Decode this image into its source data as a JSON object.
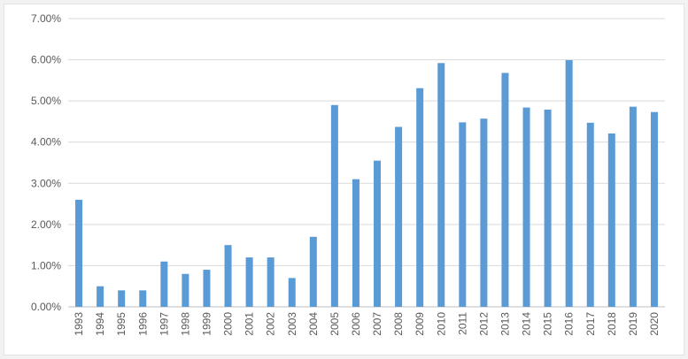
{
  "chart_data": {
    "type": "bar",
    "title": "",
    "xlabel": "",
    "ylabel": "",
    "ylim": [
      0,
      7
    ],
    "y_unit": "%",
    "yticks": [
      "0.00%",
      "1.00%",
      "2.00%",
      "3.00%",
      "4.00%",
      "5.00%",
      "6.00%",
      "7.00%"
    ],
    "grid": "horizontal",
    "legend": "none",
    "bar_color": "#5b9bd5",
    "categories": [
      "1993",
      "1994",
      "1995",
      "1996",
      "1997",
      "1998",
      "1999",
      "2000",
      "2001",
      "2002",
      "2003",
      "2004",
      "2005",
      "2006",
      "2007",
      "2008",
      "2009",
      "2010",
      "2011",
      "2012",
      "2013",
      "2014",
      "2015",
      "2016",
      "2017",
      "2018",
      "2019",
      "2020"
    ],
    "values": [
      2.6,
      0.5,
      0.4,
      0.4,
      1.1,
      0.8,
      0.9,
      1.5,
      1.2,
      1.2,
      0.7,
      1.7,
      4.9,
      3.1,
      3.55,
      4.37,
      5.31,
      5.92,
      4.48,
      4.57,
      5.68,
      4.84,
      4.79,
      5.99,
      4.47,
      4.21,
      4.86,
      4.73
    ]
  }
}
